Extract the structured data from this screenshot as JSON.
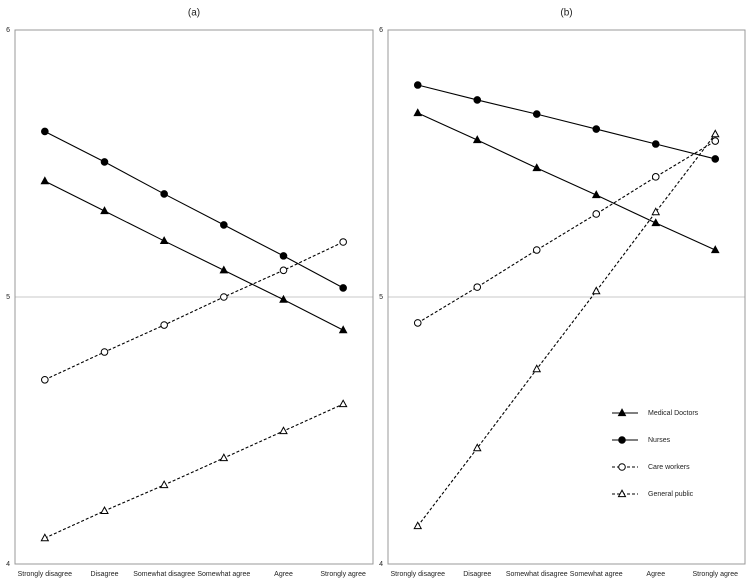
{
  "chart_data": [
    {
      "type": "line",
      "title": "(a)",
      "categories": [
        "Strongly disagree",
        "Disagree",
        "Somewhat disagree",
        "Somewhat agree",
        "Agree",
        "Strongly agree"
      ],
      "ylim": [
        4,
        6
      ],
      "yticks": [
        4,
        5,
        6
      ],
      "grid": true,
      "series": [
        {
          "color": "#000000",
          "marker": "triangle",
          "filled": true,
          "dashed": false,
          "values": [
            5.434,
            5.322,
            5.21,
            5.1,
            4.99,
            4.876
          ]
        },
        {
          "color": "#000000",
          "marker": "circle",
          "filled": true,
          "dashed": false,
          "values": [
            5.62,
            5.506,
            5.386,
            5.27,
            5.154,
            5.034
          ]
        },
        {
          "color": "#000000",
          "marker": "circle",
          "filled": false,
          "dashed": true,
          "values": [
            4.69,
            4.794,
            4.895,
            5.0,
            5.1,
            5.206
          ]
        },
        {
          "color": "#000000",
          "marker": "triangle",
          "filled": false,
          "dashed": true,
          "values": [
            4.097,
            4.199,
            4.296,
            4.397,
            4.498,
            4.599
          ]
        }
      ]
    },
    {
      "type": "line",
      "title": "(b)",
      "categories": [
        "Strongly disagree",
        "Disagree",
        "Somewhat disagree",
        "Somewhat agree",
        "Agree",
        "Strongly agree"
      ],
      "ylim": [
        4,
        6
      ],
      "yticks": [
        4,
        5,
        6
      ],
      "grid": true,
      "legend": "right",
      "series": [
        {
          "name": "Medical Doctors",
          "color": "#000000",
          "marker": "triangle",
          "filled": true,
          "dashed": false,
          "values": [
            5.689,
            5.588,
            5.483,
            5.382,
            5.277,
            5.176
          ]
        },
        {
          "name": "Nurses",
          "color": "#000000",
          "marker": "circle",
          "filled": true,
          "dashed": false,
          "values": [
            5.794,
            5.738,
            5.685,
            5.629,
            5.573,
            5.517
          ]
        },
        {
          "name": "Care workers",
          "color": "#000000",
          "marker": "circle",
          "filled": false,
          "dashed": true,
          "values": [
            4.903,
            5.037,
            5.176,
            5.311,
            5.45,
            5.584
          ]
        },
        {
          "name": "General public",
          "color": "#000000",
          "marker": "triangle",
          "filled": false,
          "dashed": true,
          "values": [
            4.142,
            4.434,
            4.73,
            5.022,
            5.318,
            5.61
          ]
        }
      ]
    }
  ]
}
